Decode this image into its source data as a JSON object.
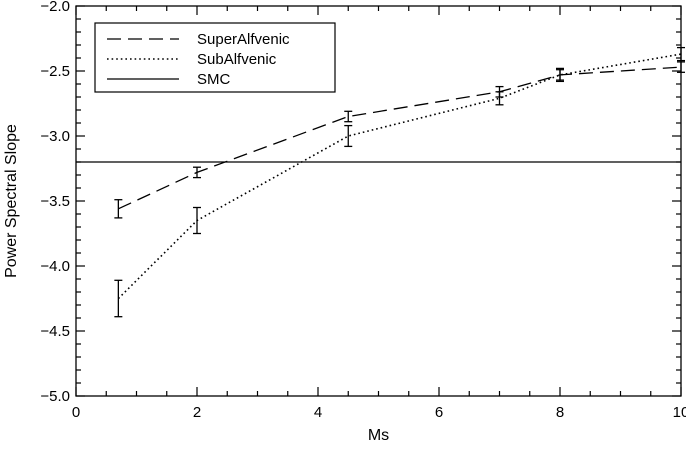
{
  "chart_data": {
    "type": "line",
    "title": "",
    "xlabel": "Ms",
    "ylabel": "Power Spectral Slope",
    "xlim": [
      0,
      10
    ],
    "ylim": [
      -5.0,
      -2.0
    ],
    "x_ticks": [
      0,
      2,
      4,
      6,
      8,
      10
    ],
    "x_tick_labels": [
      "0",
      "2",
      "4",
      "6",
      "8",
      "10"
    ],
    "y_ticks": [
      -5.0,
      -4.5,
      -4.0,
      -3.5,
      -3.0,
      -2.5,
      -2.0
    ],
    "y_tick_labels": [
      "−5.0",
      "−4.5",
      "−4.0",
      "−3.5",
      "−3.0",
      "−2.5",
      "−2.0"
    ],
    "grid": false,
    "legend_position": "top-left",
    "series": [
      {
        "name": "SuperAlfvenic",
        "style": "dashed",
        "color": "#000000",
        "x": [
          0.7,
          2,
          4.5,
          7,
          8,
          10
        ],
        "y": [
          -3.56,
          -3.28,
          -2.85,
          -2.66,
          -2.53,
          -2.47
        ],
        "err": [
          0.07,
          0.04,
          0.04,
          0.04,
          0.04,
          0.04
        ]
      },
      {
        "name": "SubAlfvenic",
        "style": "dotted",
        "color": "#000000",
        "x": [
          0.7,
          2,
          4.5,
          7,
          8,
          10
        ],
        "y": [
          -4.25,
          -3.65,
          -3.0,
          -2.71,
          -2.53,
          -2.37
        ],
        "err": [
          0.14,
          0.1,
          0.08,
          0.05,
          0.05,
          0.05
        ]
      },
      {
        "name": "SMC",
        "style": "solid",
        "color": "#000000",
        "type": "hline",
        "y": -3.2
      }
    ]
  }
}
